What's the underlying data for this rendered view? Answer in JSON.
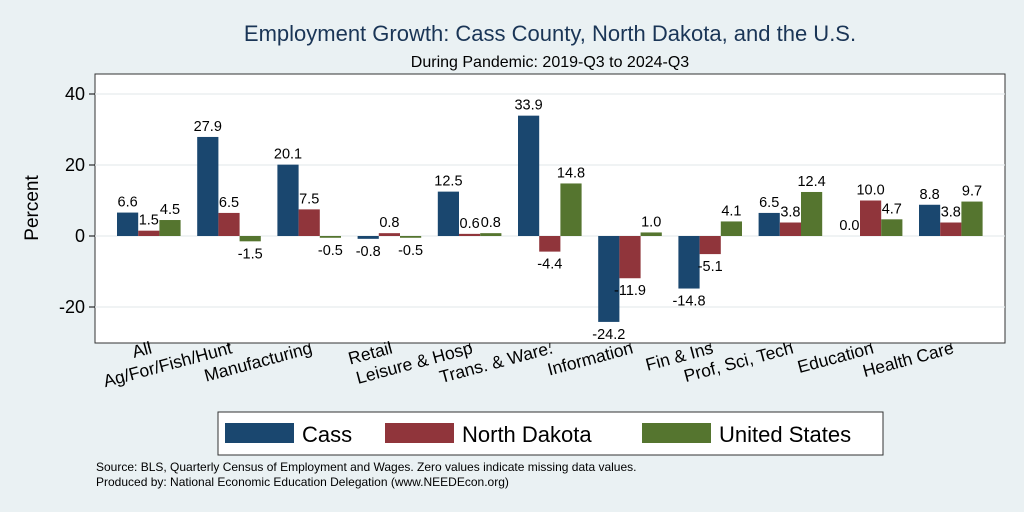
{
  "chart_data": {
    "type": "bar",
    "title": "Employment Growth: Cass County, North Dakota, and the U.S.",
    "subtitle": "During Pandemic: 2019-Q3 to 2024-Q3",
    "ylabel": "Percent",
    "xlabel": "",
    "ylim": [
      -30,
      45
    ],
    "yticks": [
      -20,
      0,
      20,
      40
    ],
    "yticks_labels": [
      "-20",
      "0",
      "20",
      "40"
    ],
    "grid": true,
    "legend_position": "bottom",
    "categories": [
      "All",
      "Ag/For/Fish/Hunt",
      "Manufacturing",
      "Retail",
      "Leisure & Hosp",
      "Trans. & Ware.",
      "Information",
      "Fin & Ins",
      "Prof, Sci, Tech",
      "Education",
      "Health Care"
    ],
    "series": [
      {
        "name": "Cass",
        "color": "#1a476f",
        "values": [
          6.6,
          27.9,
          20.1,
          -0.8,
          12.5,
          33.9,
          -24.2,
          -14.8,
          6.5,
          0.0,
          8.8
        ],
        "labels": [
          "6.6",
          "27.9",
          "20.1",
          "-0.8",
          "12.5",
          "33.9",
          "-24.2",
          "-14.8",
          "6.5",
          "0.0",
          "8.8"
        ]
      },
      {
        "name": "North Dakota",
        "color": "#90353b",
        "values": [
          1.5,
          6.5,
          7.5,
          0.8,
          0.6,
          -4.4,
          -11.9,
          -5.1,
          3.8,
          10.0,
          3.8
        ],
        "labels": [
          "1.5",
          "6.5",
          "7.5",
          "0.8",
          "0.6",
          "-4.4",
          "-11.9",
          "-5.1",
          "3.8",
          "10.0",
          "3.8"
        ]
      },
      {
        "name": "United States",
        "color": "#55752f",
        "values": [
          4.5,
          -1.5,
          -0.5,
          -0.5,
          0.8,
          14.8,
          1.0,
          4.1,
          12.4,
          4.7,
          9.7
        ],
        "labels": [
          "4.5",
          "-1.5",
          "-0.5",
          "-0.5",
          "0.8",
          "14.8",
          "1.0",
          "4.1",
          "12.4",
          "4.7",
          "9.7"
        ]
      }
    ],
    "notes": [
      "Source: BLS, Quarterly Census of Employment and Wages. Zero values indicate missing data values.",
      "Produced by: National Economic Education Delegation (www.NEEDEcon.org)"
    ]
  }
}
